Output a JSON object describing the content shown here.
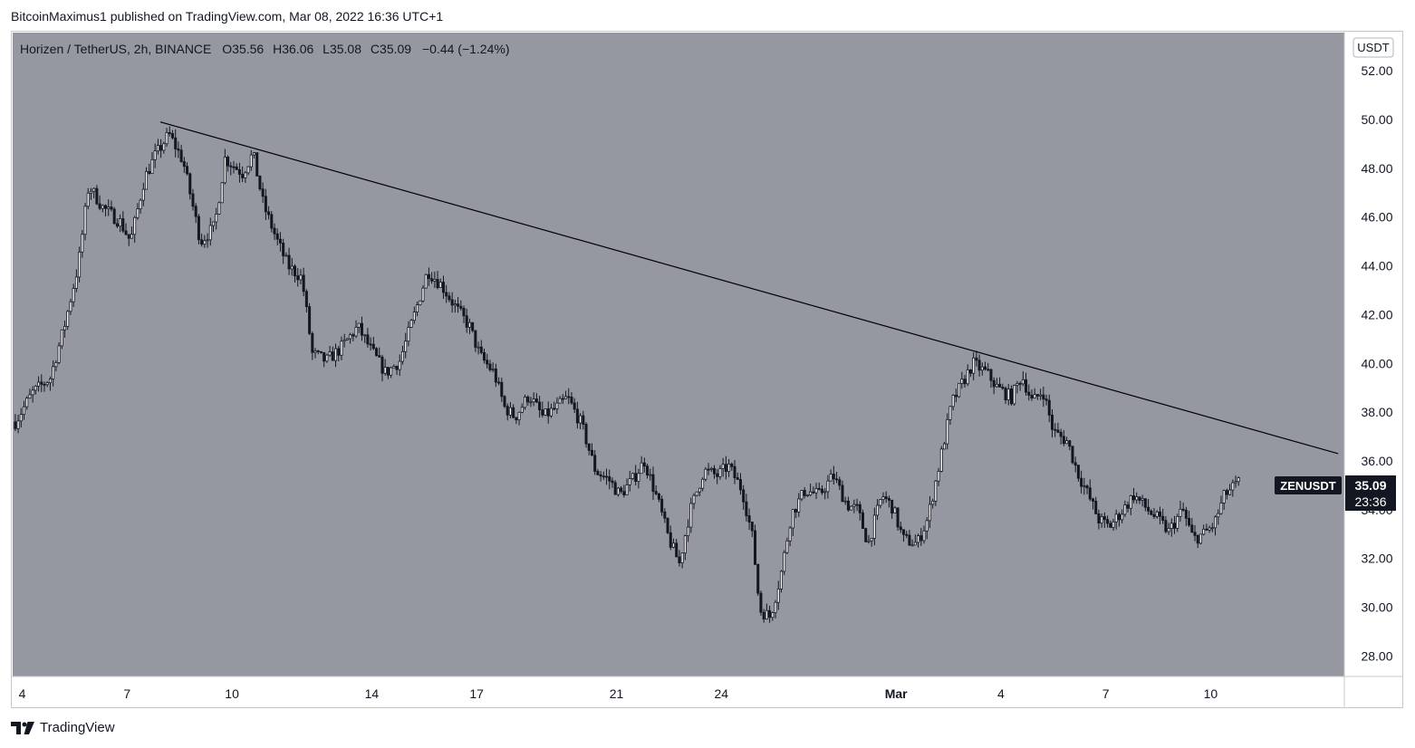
{
  "publisher_line": "BitcoinMaximus1 published on TradingView.com, Mar 08, 2022 16:36 UTC+1",
  "brand": {
    "logo_icon": "tradingview-logo-icon",
    "name": "TradingView"
  },
  "legend": {
    "symbol": "Horizen / TetherUS, 2h, BINANCE",
    "o_label": "O",
    "o_value": "35.56",
    "h_label": "H",
    "h_value": "36.06",
    "l_label": "L",
    "l_value": "35.08",
    "c_label": "C",
    "c_value": "35.09",
    "change": "−0.44 (−1.24%)"
  },
  "colors": {
    "plot_bg": "#9598a1",
    "candle": "#131722",
    "trendline": "#000000",
    "badge_bg": "#131722",
    "badge_text": "#ffffff"
  },
  "chart_data": {
    "type": "candlestick",
    "symbol": "ZENUSDT",
    "interval": "2h",
    "currency": "USDT",
    "ylim": [
      27.2,
      53.6
    ],
    "y_ticks": [
      "28.00",
      "30.00",
      "32.00",
      "34.00",
      "36.00",
      "38.00",
      "40.00",
      "42.00",
      "44.00",
      "46.00",
      "48.00",
      "50.00",
      "52.00"
    ],
    "x_ticks": [
      "4",
      "7",
      "10",
      "14",
      "17",
      "21",
      "24",
      "Mar",
      "4",
      "7",
      "10"
    ],
    "x_tick_days": [
      4,
      7,
      10,
      14,
      17,
      21,
      24,
      29,
      32,
      35,
      38
    ],
    "xlim_days": [
      3.7,
      41.8
    ],
    "price_path": [
      [
        3.8,
        37.6
      ],
      [
        4.3,
        38.8
      ],
      [
        4.8,
        39.4
      ],
      [
        5.2,
        41.5
      ],
      [
        5.6,
        44.0
      ],
      [
        5.9,
        47.3
      ],
      [
        6.3,
        46.4
      ],
      [
        6.8,
        45.8
      ],
      [
        7.1,
        45.0
      ],
      [
        7.5,
        47.6
      ],
      [
        7.8,
        48.5
      ],
      [
        8.2,
        49.4
      ],
      [
        8.6,
        48.3
      ],
      [
        9.1,
        45.0
      ],
      [
        9.5,
        45.6
      ],
      [
        9.8,
        48.4
      ],
      [
        10.3,
        47.8
      ],
      [
        10.6,
        48.6
      ],
      [
        10.9,
        46.5
      ],
      [
        11.3,
        45.0
      ],
      [
        11.6,
        44.0
      ],
      [
        12.0,
        43.5
      ],
      [
        12.3,
        40.4
      ],
      [
        12.7,
        40.1
      ],
      [
        13.1,
        40.6
      ],
      [
        13.6,
        41.5
      ],
      [
        14.0,
        40.5
      ],
      [
        14.4,
        39.6
      ],
      [
        14.8,
        40.1
      ],
      [
        15.2,
        41.9
      ],
      [
        15.6,
        43.8
      ],
      [
        16.0,
        43.2
      ],
      [
        16.4,
        42.3
      ],
      [
        16.8,
        41.5
      ],
      [
        17.1,
        40.3
      ],
      [
        17.5,
        39.6
      ],
      [
        17.8,
        38.2
      ],
      [
        18.1,
        37.8
      ],
      [
        18.5,
        38.7
      ],
      [
        18.9,
        37.8
      ],
      [
        19.3,
        38.2
      ],
      [
        19.6,
        38.6
      ],
      [
        20.0,
        37.5
      ],
      [
        20.4,
        35.6
      ],
      [
        20.8,
        35.2
      ],
      [
        21.1,
        34.6
      ],
      [
        21.5,
        35.3
      ],
      [
        21.8,
        36.0
      ],
      [
        22.2,
        34.3
      ],
      [
        22.5,
        32.8
      ],
      [
        22.8,
        31.8
      ],
      [
        23.1,
        33.9
      ],
      [
        23.5,
        35.6
      ],
      [
        23.9,
        35.4
      ],
      [
        24.2,
        35.8
      ],
      [
        24.6,
        34.8
      ],
      [
        24.9,
        32.8
      ],
      [
        25.1,
        29.9
      ],
      [
        25.4,
        29.6
      ],
      [
        25.7,
        31.3
      ],
      [
        26.0,
        33.8
      ],
      [
        26.4,
        34.8
      ],
      [
        26.8,
        34.6
      ],
      [
        27.2,
        35.4
      ],
      [
        27.6,
        34.2
      ],
      [
        27.9,
        34.0
      ],
      [
        28.2,
        32.6
      ],
      [
        28.6,
        34.6
      ],
      [
        28.9,
        34.1
      ],
      [
        29.2,
        32.8
      ],
      [
        29.6,
        32.6
      ],
      [
        29.9,
        33.6
      ],
      [
        30.2,
        35.6
      ],
      [
        30.6,
        38.4
      ],
      [
        30.9,
        39.2
      ],
      [
        31.2,
        40.0
      ],
      [
        31.6,
        39.6
      ],
      [
        31.9,
        39.0
      ],
      [
        32.3,
        38.6
      ],
      [
        32.6,
        39.5
      ],
      [
        32.9,
        38.4
      ],
      [
        33.2,
        38.9
      ],
      [
        33.5,
        37.2
      ],
      [
        33.9,
        36.8
      ],
      [
        34.2,
        35.5
      ],
      [
        34.5,
        34.6
      ],
      [
        34.8,
        33.6
      ],
      [
        35.1,
        33.3
      ],
      [
        35.5,
        34.0
      ],
      [
        35.8,
        34.6
      ],
      [
        36.2,
        34.0
      ],
      [
        36.5,
        33.6
      ],
      [
        36.8,
        33.1
      ],
      [
        37.2,
        34.0
      ],
      [
        37.5,
        32.8
      ],
      [
        37.8,
        33.0
      ],
      [
        38.1,
        33.4
      ],
      [
        38.4,
        34.6
      ],
      [
        38.8,
        35.1
      ]
    ],
    "trendline": {
      "start": [
        7.95,
        49.9
      ],
      "end": [
        41.65,
        36.3
      ]
    },
    "last_price_label": "ZENUSDT",
    "last_price": "35.09",
    "countdown": "23:36",
    "grid": false,
    "legend": "top-left"
  }
}
